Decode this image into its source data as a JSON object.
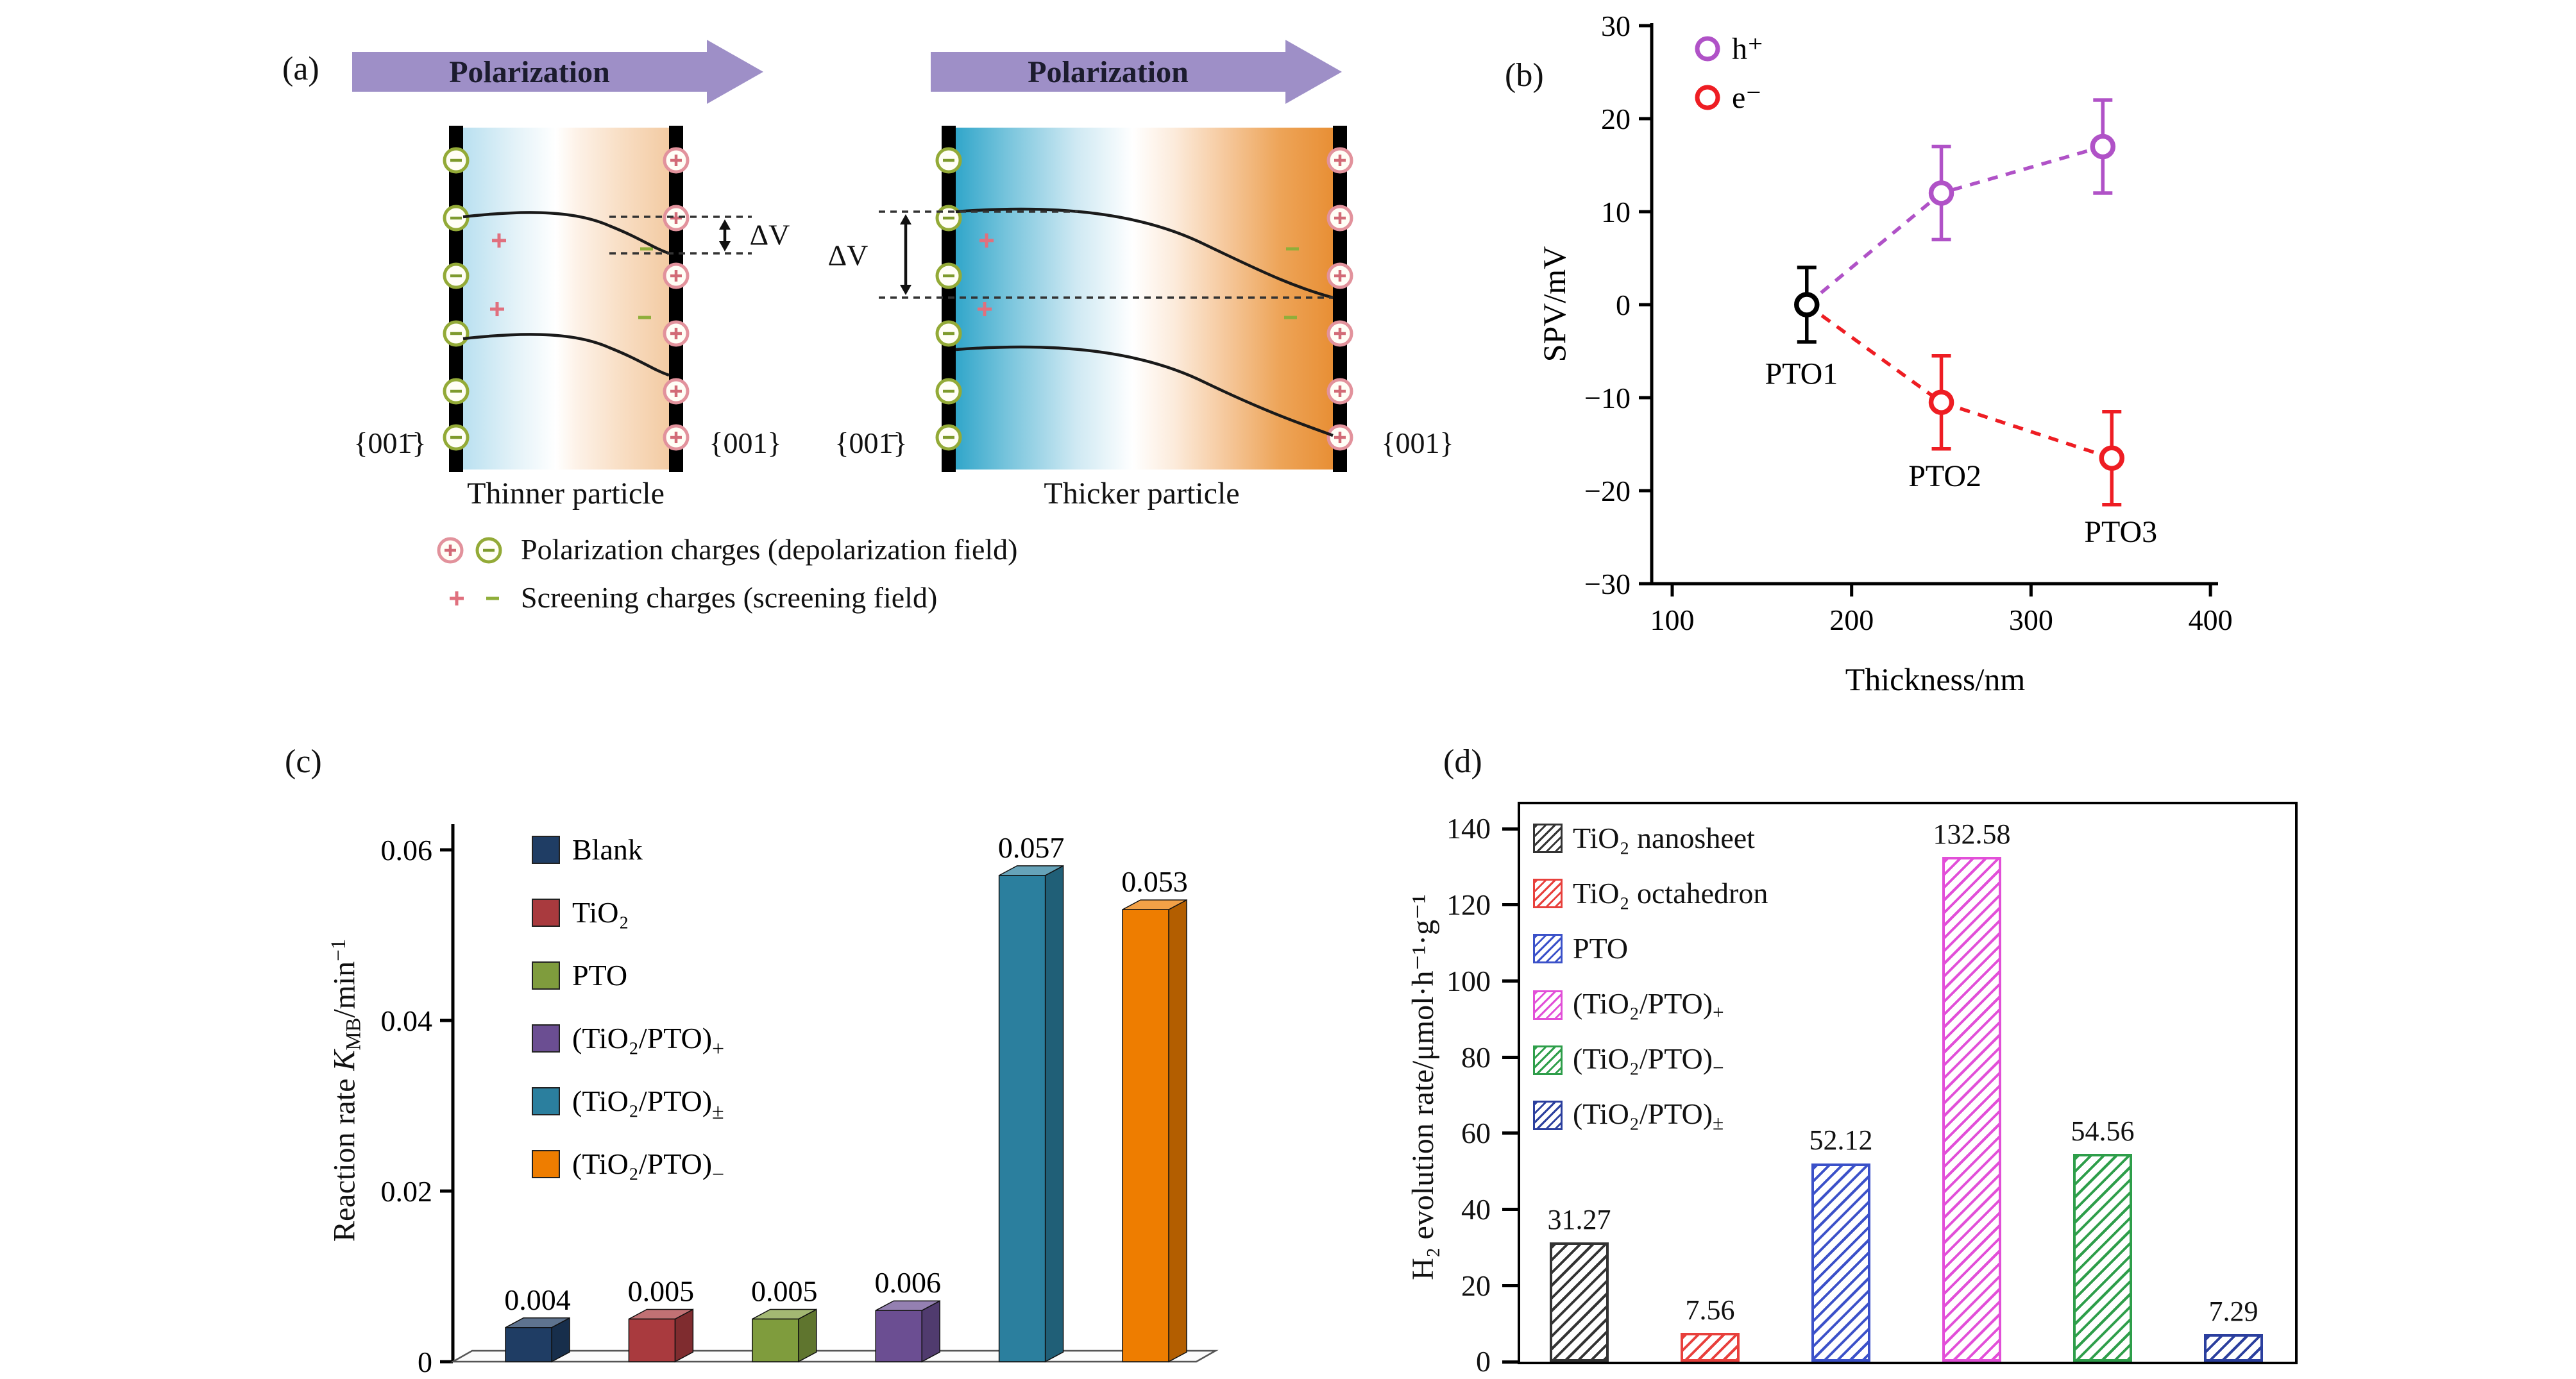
{
  "panels": {
    "a": "(a)",
    "b": "(b)",
    "c": "(c)",
    "d": "(d)"
  },
  "panel_a": {
    "arrows": [
      "Polarization",
      "Polarization"
    ],
    "delta_v": "ΔV",
    "diagrams": [
      {
        "facet_left": "{001̄}",
        "facet_right": "{001}",
        "caption": "Thinner particle"
      },
      {
        "facet_left": "{001̄}",
        "facet_right": "{001}",
        "caption": "Thicker particle"
      }
    ],
    "legend": [
      "Polarization charges (depolarization field)",
      "Screening charges (screening field)"
    ]
  },
  "chart_data": [
    {
      "id": "spv-vs-thickness",
      "panel": "b",
      "type": "scatter",
      "xlabel": "Thickness/nm",
      "ylabel": "SPV/mV",
      "xlim": [
        60,
        420
      ],
      "ylim": [
        -30,
        30
      ],
      "xticks": [
        100,
        200,
        300,
        400
      ],
      "yticks": [
        30,
        20,
        10,
        0,
        -10,
        -20,
        -30
      ],
      "grid": false,
      "legend_position": "top-left",
      "legend": [
        {
          "label": "h⁺",
          "color": "#b052c7"
        },
        {
          "label": "e⁻",
          "color": "#ee1d23"
        }
      ],
      "base_point": {
        "label": "PTO1",
        "x": 175,
        "y": 0,
        "yerr": 4,
        "color": "#000000"
      },
      "series": [
        {
          "name": "h⁺",
          "color": "#b052c7",
          "line": "dashed",
          "points": [
            {
              "x": 250,
              "y": 12,
              "yerr": 5
            },
            {
              "x": 340,
              "y": 17,
              "yerr": 5
            }
          ]
        },
        {
          "name": "e⁻",
          "color": "#ee1d23",
          "line": "dashed",
          "points": [
            {
              "x": 250,
              "y": -10.5,
              "yerr": 5
            },
            {
              "x": 345,
              "y": -16.5,
              "yerr": 5
            }
          ]
        }
      ],
      "annotations": [
        {
          "text": "PTO1",
          "x": 172,
          "y": -8.5
        },
        {
          "text": "PTO2",
          "x": 252,
          "y": -19.5
        },
        {
          "text": "PTO3",
          "x": 350,
          "y": -25.5
        }
      ]
    },
    {
      "id": "reaction-rate",
      "panel": "c",
      "type": "bar",
      "style": "3d",
      "ylabel_parts": {
        "pre": "Reaction rate ",
        "sym": "K",
        "sub": "MB",
        "post": "/min",
        "sup": "−1"
      },
      "ylim": [
        0,
        0.06
      ],
      "yticks": [
        "0",
        "0.02",
        "0.04",
        "0.06"
      ],
      "categories": [
        {
          "text": "Blank",
          "sub": ""
        },
        {
          "text": "TiO₂",
          "sub": ""
        },
        {
          "text": "PTO",
          "sub": ""
        },
        {
          "text": "(TiO₂/PTO)",
          "sub": "+"
        },
        {
          "text": "(TiO₂/PTO)",
          "sub": "±"
        },
        {
          "text": "(TiO₂/PTO)",
          "sub": "−"
        }
      ],
      "values": [
        0.004,
        0.005,
        0.005,
        0.006,
        0.057,
        0.053
      ],
      "value_labels": [
        "0.004",
        "0.005",
        "0.005",
        "0.006",
        "0.057",
        "0.053"
      ],
      "colors": [
        "#1f3d64",
        "#a93a3e",
        "#7f9c3d",
        "#6b4e92",
        "#2b7f9e",
        "#ee7d00"
      ],
      "legend_position": "top-left"
    },
    {
      "id": "h2-evolution-rate",
      "panel": "d",
      "type": "bar",
      "style": "hatched",
      "ylabel": "H₂ evolution rate/μmol·h⁻¹·g⁻¹",
      "ylim": [
        0,
        146
      ],
      "yticks": [
        0,
        20,
        40,
        60,
        80,
        100,
        120,
        140
      ],
      "categories": [
        {
          "text": "TiO₂ nanosheet",
          "sub": ""
        },
        {
          "text": "TiO₂ octahedron",
          "sub": ""
        },
        {
          "text": "PTO",
          "sub": ""
        },
        {
          "text": "(TiO₂/PTO)",
          "sub": "+"
        },
        {
          "text": "(TiO₂/PTO)",
          "sub": "−"
        },
        {
          "text": "(TiO₂/PTO)",
          "sub": "±"
        }
      ],
      "values": [
        31.27,
        7.56,
        52.12,
        132.58,
        54.56,
        7.29
      ],
      "value_labels": [
        "31.27",
        "7.56",
        "52.12",
        "132.58",
        "54.56",
        "7.29"
      ],
      "colors": [
        "#333333",
        "#e8403c",
        "#3b51c9",
        "#e24fd8",
        "#2e9e4a",
        "#2b3f9e"
      ],
      "legend_position": "top-left"
    }
  ]
}
